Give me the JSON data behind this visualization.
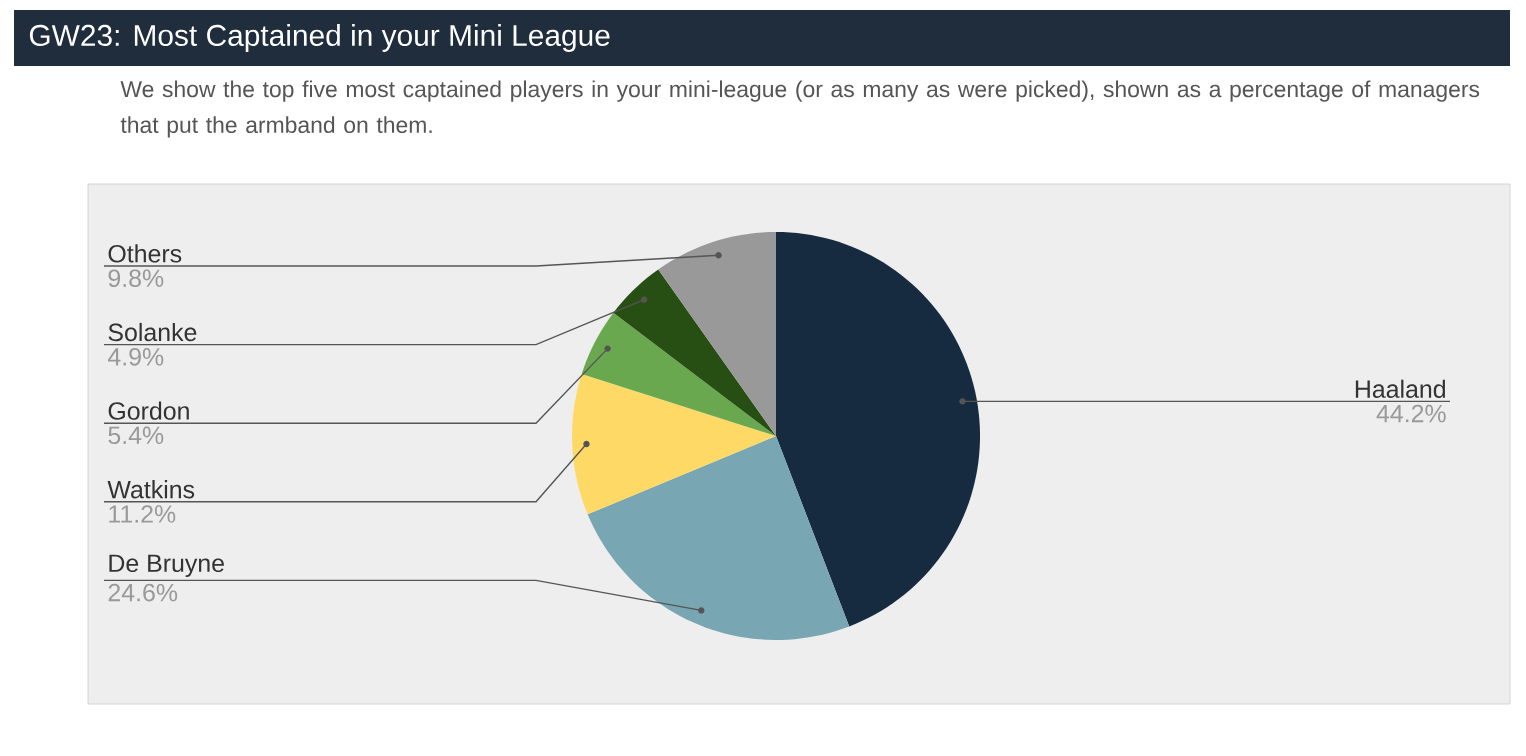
{
  "chart_data": {
    "type": "pie",
    "title": "GW23: Most Captained in your Mini League",
    "subtitle": "We show the top five most captained players in your mini-league (or as many as were picked), shown as a percentage of managers that put the armband on them.",
    "categories": [
      "Haaland",
      "De Bruyne",
      "Watkins",
      "Gordon",
      "Solanke",
      "Others"
    ],
    "values": [
      44.2,
      24.6,
      11.2,
      5.4,
      4.9,
      9.8
    ],
    "value_labels": [
      "44.2%",
      "24.6%",
      "11.2%",
      "5.4%",
      "4.9%",
      "9.8%"
    ],
    "colors": [
      "#172b40",
      "#78a6b3",
      "#ffd966",
      "#6aa84f",
      "#274e13",
      "#999999"
    ]
  }
}
